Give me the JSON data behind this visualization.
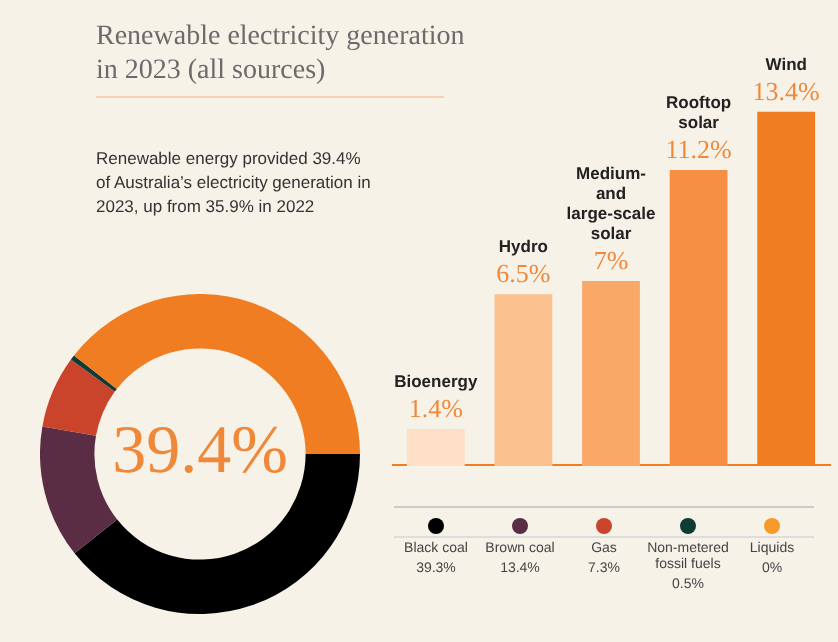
{
  "chart_data": [
    {
      "type": "donut",
      "title": "Renewable electricity generation in 2023 (all sources)",
      "subtitle": "Renewable energy provided 39.4% of Australia’s electricity generation in 2023, up from 35.9% in 2022",
      "categories": [
        "Black coal",
        "Brown coal",
        "Gas",
        "Non-metered fossil fuels",
        "Liquids",
        null
      ],
      "values": [
        39.3,
        13.4,
        7.3,
        0.5,
        0,
        39.4
      ],
      "colors": [
        "#000000",
        "#5a2d45",
        "#c9442a",
        "#0f3b36",
        "#f89a2a",
        "#f07d22"
      ],
      "value_labels": [
        "39.3%",
        "13.4%",
        "7.3%",
        "0.5%",
        "0%",
        "39.4%"
      ],
      "legend": "right"
    },
    {
      "type": "bar",
      "categories": [
        "Bioenergy",
        "Hydro",
        "Medium- and large-scale solar",
        "Rooftop solar",
        "Wind"
      ],
      "values": [
        1.4,
        6.5,
        7,
        11.2,
        13.4
      ],
      "colors": [
        "#fde0c5",
        "#fbc28f",
        "#f9a868",
        "#f68f43",
        "#f07d22"
      ],
      "value_labels": [
        "1.4%",
        "6.5%",
        "7%",
        "11.2%",
        "13.4%"
      ]
    }
  ]
}
